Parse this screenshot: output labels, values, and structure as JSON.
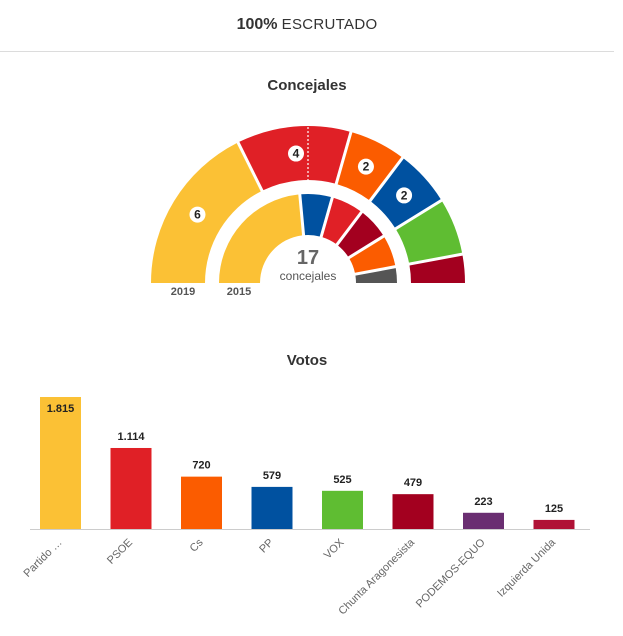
{
  "header": {
    "percent": "100%",
    "label": "ESCRUTADO"
  },
  "colors": {
    "Partido …": "#fbc135",
    "PSOE": "#e02026",
    "Cs": "#fb5c00",
    "PP": "#0051a0",
    "VOX": "#5fbd32",
    "Chunta Aragonesista": "#a3001f",
    "PODEMOS-EQUO": "#6a2e71",
    "Izquierda Unida": "#b01236",
    "other": "#555555"
  },
  "seats": {
    "title": "Concejales",
    "total": "17",
    "total_label": "concejales",
    "outer_label": "2019",
    "inner_label": "2015",
    "outer": [
      {
        "party": "Partido …",
        "seats": 6,
        "label": "6"
      },
      {
        "party": "PSOE",
        "seats": 4,
        "label": "4"
      },
      {
        "party": "Cs",
        "seats": 2,
        "label": "2"
      },
      {
        "party": "PP",
        "seats": 2,
        "label": "2"
      },
      {
        "party": "VOX",
        "seats": 2,
        "label": ""
      },
      {
        "party": "Chunta Aragonesista",
        "seats": 1,
        "label": ""
      }
    ],
    "inner": [
      {
        "party": "Partido …",
        "seats": 8
      },
      {
        "party": "PP",
        "seats": 2
      },
      {
        "party": "PSOE",
        "seats": 2
      },
      {
        "party": "Chunta Aragonesista",
        "seats": 2
      },
      {
        "party": "Cs",
        "seats": 2
      },
      {
        "party": "other",
        "seats": 1
      }
    ]
  },
  "chart_data": {
    "type": "bar",
    "title": "Votos",
    "categories": [
      "Partido …",
      "PSOE",
      "Cs",
      "PP",
      "VOX",
      "Chunta Aragonesista",
      "PODEMOS-EQUO",
      "Izquierda Unida"
    ],
    "values": [
      1815,
      1114,
      720,
      579,
      525,
      479,
      223,
      125
    ],
    "value_labels": [
      "1.815",
      "1.114",
      "720",
      "579",
      "525",
      "479",
      "223",
      "125"
    ],
    "ylim": [
      0,
      1815
    ]
  }
}
